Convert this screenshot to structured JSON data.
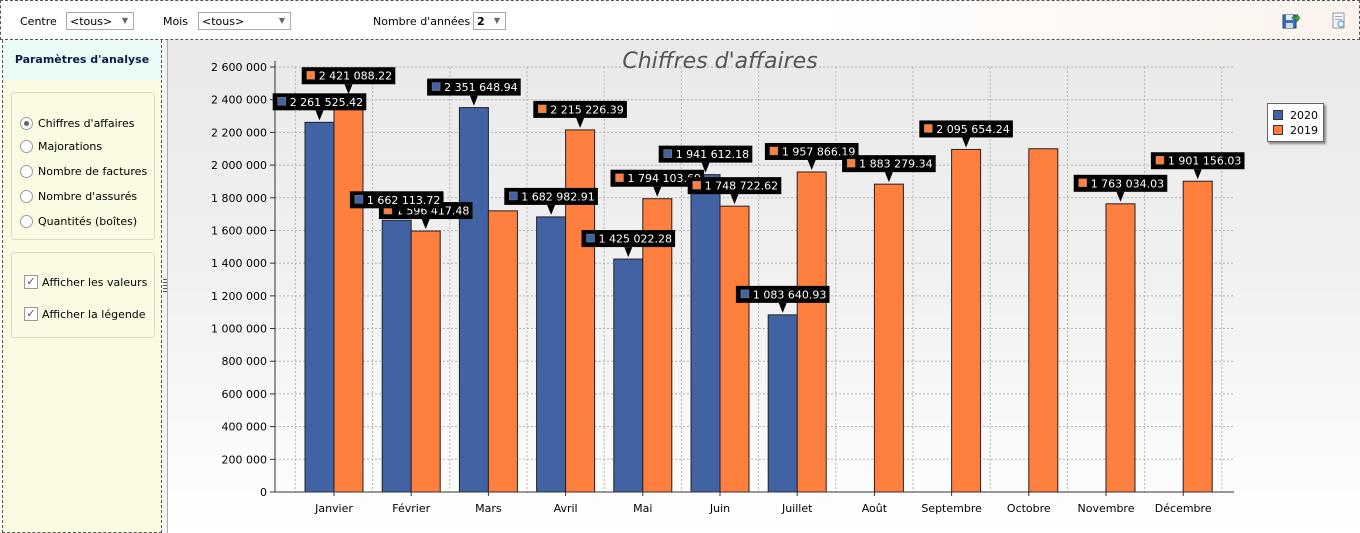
{
  "toolbar": {
    "centre_label": "Centre",
    "centre_value": "<tous>",
    "mois_label": "Mois",
    "mois_value": "<tous>",
    "annees_label": "Nombre d'années :",
    "annees_value": "2"
  },
  "sidebar": {
    "title": "Paramètres d'analyse",
    "radios": [
      {
        "label": "Chiffres d'affaires",
        "checked": true
      },
      {
        "label": "Majorations",
        "checked": false
      },
      {
        "label": "Nombre de factures",
        "checked": false
      },
      {
        "label": "Nombre d'assurés",
        "checked": false
      },
      {
        "label": "Quantités (boîtes)",
        "checked": false
      }
    ],
    "checks": [
      {
        "label": "Afficher les valeurs",
        "checked": true
      },
      {
        "label": "Afficher la légende",
        "checked": true
      }
    ]
  },
  "colors": {
    "series_2020": "#4263a3",
    "series_2019": "#ff7f3f",
    "grid": "#b4b4b4"
  },
  "chart_data": {
    "type": "bar",
    "title": "Chiffres d'affaires",
    "xlabel": "",
    "ylabel": "",
    "ylim": [
      0,
      2600000
    ],
    "yticks": [
      0,
      200000,
      400000,
      600000,
      800000,
      1000000,
      1200000,
      1400000,
      1600000,
      1800000,
      2000000,
      2200000,
      2400000,
      2600000
    ],
    "ytick_labels": [
      "0",
      "200 000",
      "400 000",
      "600 000",
      "800 000",
      "1 000 000",
      "1 200 000",
      "1 400 000",
      "1 600 000",
      "1 800 000",
      "2 000 000",
      "2 200 000",
      "2 400 000",
      "2 600 000"
    ],
    "grid": true,
    "legend_position": "right",
    "categories": [
      "Janvier",
      "Février",
      "Mars",
      "Avril",
      "Mai",
      "Juin",
      "Juillet",
      "Août",
      "Septembre",
      "Octobre",
      "Novembre",
      "Décembre"
    ],
    "series": [
      {
        "name": "2020",
        "values": [
          2261525.42,
          1662113.72,
          2351648.94,
          1682982.91,
          1425022.28,
          1941612.18,
          1083640.93,
          null,
          null,
          null,
          null,
          null
        ],
        "labels": [
          "2 261 525.42",
          "1 662 113.72",
          "2 351 648.94",
          "1 682 982.91",
          "1 425 022.28",
          "1 941 612.18",
          "1 083 640.93",
          null,
          null,
          null,
          null,
          null
        ]
      },
      {
        "name": "2019",
        "values": [
          2421088.22,
          1596417.48,
          1720000,
          2215226.39,
          1794103.69,
          1748722.62,
          1957866.19,
          1883279.34,
          2095654.24,
          2100000,
          1763034.03,
          1901156.03
        ],
        "labels": [
          "2 421 088.22",
          "1 596 417.48",
          null,
          "2 215 226.39",
          "1 794 103.69",
          "1 748 722.62",
          "1 957 866.19",
          "1 883 279.34",
          "2 095 654.24",
          null,
          "1 763 034.03",
          "1 901 156.03"
        ]
      }
    ]
  }
}
